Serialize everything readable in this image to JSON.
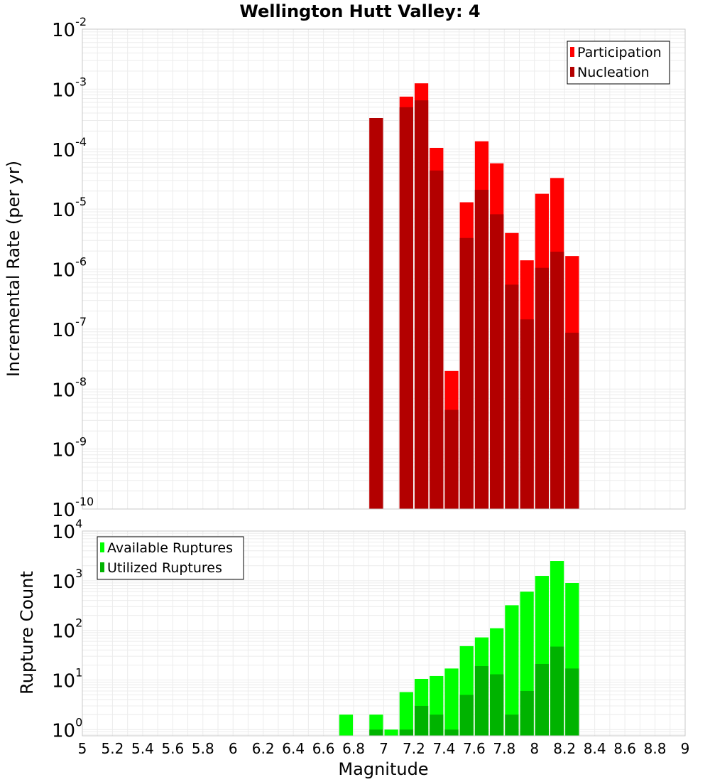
{
  "chart_data": [
    {
      "type": "bar",
      "title": "Wellington Hutt Valley: 4",
      "xlabel": "",
      "ylabel": "Incremental Rate (per yr)",
      "yscale": "log",
      "ylim": [
        1e-10,
        0.01
      ],
      "xlim": [
        5,
        9
      ],
      "bin_width": 0.1,
      "y_tick_labels": [
        "10-10",
        "10-9",
        "10-8",
        "10-7",
        "10-6",
        "10-5",
        "10-4",
        "10-3",
        "10-2"
      ],
      "legend_placement": "top-right",
      "grid": true,
      "series": [
        {
          "name": "Participation",
          "color": "#ff0000",
          "x": [
            6.95,
            7.15,
            7.25,
            7.35,
            7.45,
            7.55,
            7.65,
            7.75,
            7.85,
            7.95,
            8.05,
            8.15,
            8.25
          ],
          "values": [
            0.00033,
            0.00075,
            0.00125,
            0.000105,
            2e-08,
            1.3e-05,
            0.000135,
            5.8e-05,
            4e-06,
            1.4e-06,
            1.8e-05,
            3.3e-05,
            1.65e-06
          ]
        },
        {
          "name": "Nucleation",
          "color": "#b30000",
          "x": [
            6.95,
            7.15,
            7.25,
            7.35,
            7.45,
            7.55,
            7.65,
            7.75,
            7.85,
            7.95,
            8.05,
            8.15,
            8.25
          ],
          "values": [
            0.00033,
            0.0005,
            0.00065,
            4.4e-05,
            4.5e-09,
            3.3e-06,
            2.1e-05,
            8.2e-06,
            5.5e-07,
            1.45e-07,
            1.05e-06,
            1.95e-06,
            8.7e-08
          ]
        }
      ]
    },
    {
      "type": "bar",
      "title": "",
      "xlabel": "Magnitude",
      "ylabel": "Rupture Count",
      "yscale": "log",
      "ylim": [
        0.75,
        10000
      ],
      "xlim": [
        5,
        9
      ],
      "bin_width": 0.1,
      "x_tick_labels": [
        "5",
        "5.2",
        "5.4",
        "5.6",
        "5.8",
        "6",
        "6.2",
        "6.4",
        "6.6",
        "6.8",
        "7",
        "7.2",
        "7.4",
        "7.6",
        "7.8",
        "8",
        "8.2",
        "8.4",
        "8.6",
        "8.8",
        "9"
      ],
      "y_tick_labels": [
        "100",
        "101",
        "102",
        "103",
        "104"
      ],
      "legend_placement": "top-left",
      "grid": true,
      "series": [
        {
          "name": "Available Ruptures",
          "color": "#00ff00",
          "x": [
            6.75,
            6.95,
            7.05,
            7.15,
            7.25,
            7.35,
            7.45,
            7.55,
            7.65,
            7.75,
            7.85,
            7.95,
            8.05,
            8.15,
            8.25
          ],
          "values": [
            2,
            2,
            1,
            5.7,
            10.5,
            12,
            17,
            48,
            72,
            110,
            320,
            600,
            1250,
            2500,
            900
          ]
        },
        {
          "name": "Utilized Ruptures",
          "color": "#00b300",
          "x": [
            6.75,
            6.95,
            7.05,
            7.15,
            7.25,
            7.35,
            7.45,
            7.55,
            7.65,
            7.75,
            7.85,
            7.95,
            8.05,
            8.15,
            8.25
          ],
          "values": [
            0,
            1,
            0,
            1,
            3,
            2,
            1,
            5,
            19,
            13,
            2,
            6,
            21,
            47,
            17
          ]
        }
      ]
    }
  ]
}
